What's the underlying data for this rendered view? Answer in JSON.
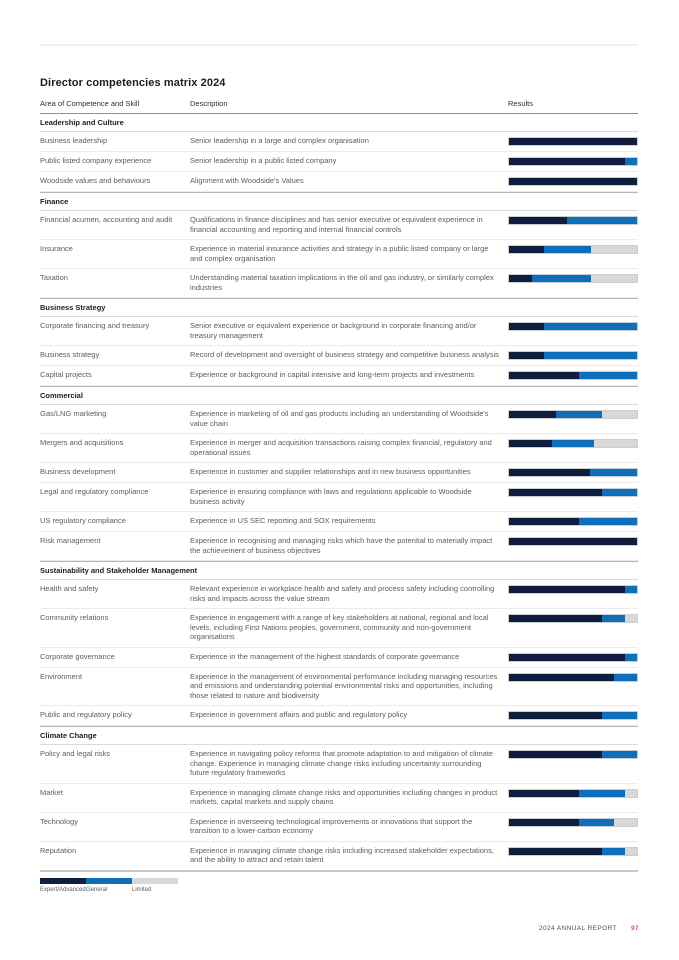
{
  "page": {
    "title": "Director competencies matrix 2024",
    "footer": {
      "report_label": "2024 ANNUAL REPORT",
      "page_number": "97"
    }
  },
  "colors": {
    "expert": "#0f1e3d",
    "general": "#0d6eba",
    "limited": "#d7d8d9",
    "page_red": "#e9495f"
  },
  "table": {
    "columns": {
      "area": "Area of Competence and Skill",
      "description": "Description",
      "results": "Results"
    },
    "sections": [
      {
        "name": "Leadership and Culture",
        "rows": [
          {
            "area": "Business leadership",
            "description": "Senior leadership in a large and complex organisation",
            "results": {
              "expert_pct": 100,
              "general_pct": 0,
              "limited_pct": 0
            }
          },
          {
            "area": "Public listed company experience",
            "description": "Senior leadership in a public listed company",
            "results": {
              "expert_pct": 90.9,
              "general_pct": 9.1,
              "limited_pct": 0
            }
          },
          {
            "area": "Woodside values and behaviours",
            "description": "Alignment with Woodside's Values",
            "results": {
              "expert_pct": 100,
              "general_pct": 0,
              "limited_pct": 0
            }
          }
        ]
      },
      {
        "name": "Finance",
        "rows": [
          {
            "area": "Financial acumen, accounting and audit",
            "description": "Qualifications in finance disciplines and has senior executive or equivalent experience in financial accounting and reporting and internal financial controls",
            "results": {
              "expert_pct": 45.5,
              "general_pct": 54.5,
              "limited_pct": 0
            }
          },
          {
            "area": "Insurance",
            "description": "Experience in material insurance activities and strategy in a public listed company or large and complex organisation",
            "results": {
              "expert_pct": 27.3,
              "general_pct": 36.4,
              "limited_pct": 36.3
            }
          },
          {
            "area": "Taxation",
            "description": "Understanding material taxation implications in the oil and gas industry, or similarly complex industries",
            "results": {
              "expert_pct": 18.2,
              "general_pct": 45.5,
              "limited_pct": 36.3
            }
          }
        ]
      },
      {
        "name": "Business Strategy",
        "rows": [
          {
            "area": "Corporate financing and treasury",
            "description": "Senior executive or equivalent experience or background in corporate financing and/or treasury management",
            "results": {
              "expert_pct": 27.3,
              "general_pct": 72.7,
              "limited_pct": 0
            }
          },
          {
            "area": "Business strategy",
            "description": "Record of development and oversight of business strategy and competitive business analysis",
            "results": {
              "expert_pct": 27.3,
              "general_pct": 72.7,
              "limited_pct": 0
            }
          },
          {
            "area": "Capital projects",
            "description": "Experience or background in capital intensive and long-term projects and investments",
            "results": {
              "expert_pct": 54.5,
              "general_pct": 45.5,
              "limited_pct": 0
            }
          }
        ]
      },
      {
        "name": "Commercial",
        "rows": [
          {
            "area": "Gas/LNG marketing",
            "description": "Experience in marketing of oil and gas products including an understanding of Woodside's value chain",
            "results": {
              "expert_pct": 36.4,
              "general_pct": 36.4,
              "limited_pct": 27.2
            }
          },
          {
            "area": "Mergers and acquisitions",
            "description": "Experience in merger and acquisition transactions raising complex financial, regulatory and operational issues",
            "results": {
              "expert_pct": 33.3,
              "general_pct": 33.4,
              "limited_pct": 33.3
            }
          },
          {
            "area": "Business development",
            "description": "Experience in customer and supplier relationships and in new business opportunities",
            "results": {
              "expert_pct": 63.6,
              "general_pct": 36.4,
              "limited_pct": 0
            }
          },
          {
            "area": "Legal and regulatory compliance",
            "description": "Experience in ensuring compliance with laws and regulations applicable to Woodside business activity",
            "results": {
              "expert_pct": 72.7,
              "general_pct": 27.3,
              "limited_pct": 0
            }
          },
          {
            "area": "US regulatory compliance",
            "description": "Experience in US SEC reporting and SOX requirements",
            "results": {
              "expert_pct": 54.5,
              "general_pct": 45.5,
              "limited_pct": 0
            }
          },
          {
            "area": "Risk management",
            "description": "Experience in recognising and managing risks which have the potential to materially impact the achievement of business objectives",
            "results": {
              "expert_pct": 100,
              "general_pct": 0,
              "limited_pct": 0
            }
          }
        ]
      },
      {
        "name": "Sustainability and Stakeholder Management",
        "rows": [
          {
            "area": "Health and safety",
            "description": "Relevant experience in workplace health and safety and process safety including controlling risks and impacts across the value stream",
            "results": {
              "expert_pct": 90.9,
              "general_pct": 9.1,
              "limited_pct": 0
            }
          },
          {
            "area": "Community relations",
            "description": "Experience in engagement with a range of key stakeholders at national, regional and local levels, including First Nations peoples, government, community and non-government organisations",
            "results": {
              "expert_pct": 72.7,
              "general_pct": 18.2,
              "limited_pct": 9.1
            }
          },
          {
            "area": "Corporate governance",
            "description": "Experience in the management of the highest standards of corporate governance",
            "results": {
              "expert_pct": 90.9,
              "general_pct": 9.1,
              "limited_pct": 0
            }
          },
          {
            "area": "Environment",
            "description": "Experience in the management of environmental performance including managing resources and emissions and understanding potential environmental risks and opportunities, including those related to nature and biodiversity",
            "results": {
              "expert_pct": 81.8,
              "general_pct": 18.2,
              "limited_pct": 0
            }
          },
          {
            "area": "Public and regulatory policy",
            "description": "Experience in government affairs and public and regulatory policy",
            "results": {
              "expert_pct": 72.7,
              "general_pct": 27.3,
              "limited_pct": 0
            }
          }
        ]
      },
      {
        "name": "Climate Change",
        "rows": [
          {
            "area": "Policy and legal risks",
            "description": "Experience in navigating policy reforms that promote adaptation to and mitigation of climate change. Experience in managing climate change risks including uncertainty surrounding future regulatory frameworks",
            "results": {
              "expert_pct": 72.7,
              "general_pct": 27.3,
              "limited_pct": 0
            }
          },
          {
            "area": "Market",
            "description": "Experience in managing climate change risks and opportunities including changes in product markets, capital markets and supply chains",
            "results": {
              "expert_pct": 54.5,
              "general_pct": 36.4,
              "limited_pct": 9.1
            }
          },
          {
            "area": "Technology",
            "description": "Experience in overseeing technological improvements or innovations that support the transition to a lower-carbon economy",
            "results": {
              "expert_pct": 54.5,
              "general_pct": 27.3,
              "limited_pct": 18.2
            }
          },
          {
            "area": "Reputation",
            "description": "Experience in managing climate change risks including increased stakeholder expectations, and the ability to attract and retain talent",
            "results": {
              "expert_pct": 72.7,
              "general_pct": 18.2,
              "limited_pct": 9.1
            }
          }
        ]
      }
    ]
  },
  "legend": {
    "items": [
      {
        "label": "Expert/Advanced",
        "key": "expert"
      },
      {
        "label": "General",
        "key": "general"
      },
      {
        "label": "Limited",
        "key": "limited"
      }
    ]
  }
}
